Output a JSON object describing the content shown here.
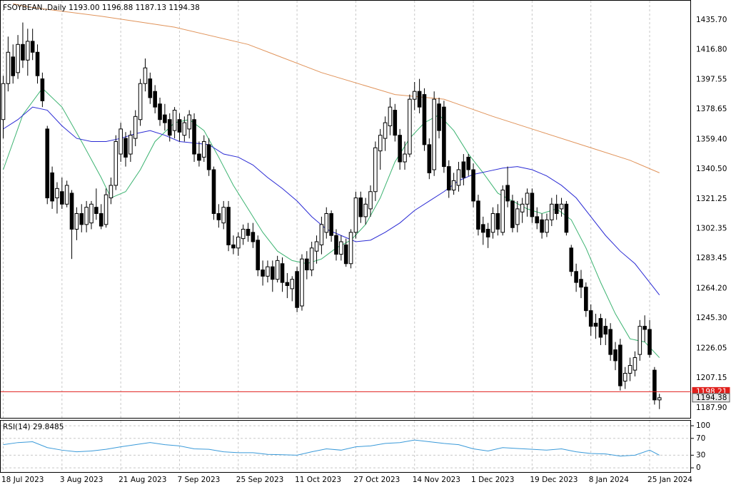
{
  "chart_data": {
    "type": "candlestick",
    "title": "FSOYBEAN.,Daily  1193.00 1196.88 1187.13 1194.38",
    "categories": [
      "18 Jul 2023",
      null,
      null,
      null,
      null,
      null,
      null,
      null,
      null,
      null,
      null,
      null,
      "3 Aug 2023",
      null,
      null,
      null,
      null,
      null,
      null,
      null,
      null,
      null,
      null,
      null,
      "21 Aug 2023",
      null,
      null,
      null,
      null,
      null,
      null,
      null,
      null,
      null,
      null,
      null,
      "7 Sep 2023",
      null,
      null,
      null,
      null,
      null,
      null,
      null,
      null,
      null,
      null,
      null,
      "25 Sep 2023",
      null,
      null,
      null,
      null,
      null,
      null,
      null,
      null,
      null,
      null,
      null,
      "11 Oct 2023",
      null,
      null,
      null,
      null,
      null,
      null,
      null,
      null,
      null,
      null,
      null,
      "27 Oct 2023",
      null,
      null,
      null,
      null,
      null,
      null,
      null,
      null,
      null,
      null,
      null,
      "14 Nov 2023",
      null,
      null,
      null,
      null,
      null,
      null,
      null,
      null,
      null,
      null,
      null,
      "1 Dec 2023",
      null,
      null,
      null,
      null,
      null,
      null,
      null,
      null,
      null,
      null,
      null,
      "19 Dec 2023",
      null,
      null,
      null,
      null,
      null,
      null,
      null,
      null,
      null,
      null,
      null,
      "8 Jan 2024",
      null,
      null,
      null,
      null,
      null,
      null,
      null,
      null,
      null,
      null,
      null,
      "25 Jan 2024",
      null,
      null
    ],
    "candles": [
      [
        1372,
        1400,
        1360,
        1395
      ],
      [
        1395,
        1425,
        1390,
        1415
      ],
      [
        1412,
        1420,
        1395,
        1400
      ],
      [
        1402,
        1426,
        1398,
        1420
      ],
      [
        1420,
        1434,
        1405,
        1410
      ],
      [
        1410,
        1430,
        1400,
        1422
      ],
      [
        1422,
        1430,
        1410,
        1415
      ],
      [
        1415,
        1420,
        1395,
        1400
      ],
      [
        1398,
        1402,
        1380,
        1384
      ],
      [
        1366,
        1368,
        1318,
        1322
      ],
      [
        1338,
        1342,
        1315,
        1320
      ],
      [
        1322,
        1332,
        1312,
        1328
      ],
      [
        1326,
        1335,
        1315,
        1318
      ],
      [
        1318,
        1333,
        1316,
        1330
      ],
      [
        1325,
        1327,
        1283,
        1302
      ],
      [
        1302,
        1316,
        1295,
        1312
      ],
      [
        1312,
        1318,
        1300,
        1305
      ],
      [
        1305,
        1320,
        1300,
        1316
      ],
      [
        1306,
        1320,
        1302,
        1318
      ],
      [
        1316,
        1328,
        1308,
        1312
      ],
      [
        1312,
        1318,
        1302,
        1304
      ],
      [
        1305,
        1328,
        1303,
        1324
      ],
      [
        1322,
        1335,
        1318,
        1330
      ],
      [
        1330,
        1362,
        1327,
        1358
      ],
      [
        1350,
        1370,
        1345,
        1366
      ],
      [
        1360,
        1364,
        1342,
        1348
      ],
      [
        1350,
        1365,
        1345,
        1362
      ],
      [
        1360,
        1378,
        1355,
        1374
      ],
      [
        1372,
        1398,
        1368,
        1395
      ],
      [
        1395,
        1411,
        1390,
        1405
      ],
      [
        1398,
        1402,
        1382,
        1386
      ],
      [
        1390,
        1394,
        1376,
        1380
      ],
      [
        1382,
        1386,
        1368,
        1372
      ],
      [
        1375,
        1382,
        1365,
        1370
      ],
      [
        1372,
        1376,
        1358,
        1362
      ],
      [
        1365,
        1380,
        1360,
        1378
      ],
      [
        1372,
        1376,
        1358,
        1364
      ],
      [
        1362,
        1374,
        1358,
        1370
      ],
      [
        1366,
        1378,
        1360,
        1375
      ],
      [
        1372,
        1376,
        1345,
        1350
      ],
      [
        1350,
        1358,
        1342,
        1346
      ],
      [
        1348,
        1362,
        1345,
        1358
      ],
      [
        1356,
        1360,
        1336,
        1340
      ],
      [
        1340,
        1342,
        1308,
        1312
      ],
      [
        1312,
        1318,
        1303,
        1308
      ],
      [
        1306,
        1320,
        1302,
        1316
      ],
      [
        1316,
        1320,
        1288,
        1292
      ],
      [
        1292,
        1298,
        1286,
        1290
      ],
      [
        1290,
        1300,
        1285,
        1297
      ],
      [
        1296,
        1305,
        1292,
        1302
      ],
      [
        1302,
        1306,
        1294,
        1298
      ],
      [
        1300,
        1306,
        1290,
        1294
      ],
      [
        1295,
        1298,
        1272,
        1276
      ],
      [
        1276,
        1282,
        1266,
        1272
      ],
      [
        1272,
        1282,
        1268,
        1278
      ],
      [
        1278,
        1282,
        1262,
        1270
      ],
      [
        1270,
        1285,
        1268,
        1282
      ],
      [
        1280,
        1284,
        1262,
        1268
      ],
      [
        1268,
        1274,
        1258,
        1266
      ],
      [
        1264,
        1272,
        1256,
        1270
      ],
      [
        1275,
        1278,
        1249,
        1252
      ],
      [
        1253,
        1286,
        1250,
        1283
      ],
      [
        1283,
        1288,
        1270,
        1276
      ],
      [
        1276,
        1294,
        1272,
        1290
      ],
      [
        1288,
        1298,
        1280,
        1294
      ],
      [
        1292,
        1310,
        1286,
        1305
      ],
      [
        1300,
        1316,
        1296,
        1312
      ],
      [
        1312,
        1314,
        1294,
        1298
      ],
      [
        1298,
        1302,
        1282,
        1286
      ],
      [
        1286,
        1298,
        1282,
        1294
      ],
      [
        1292,
        1296,
        1278,
        1280
      ],
      [
        1280,
        1302,
        1277,
        1300
      ],
      [
        1300,
        1326,
        1296,
        1322
      ],
      [
        1322,
        1326,
        1306,
        1310
      ],
      [
        1310,
        1322,
        1305,
        1318
      ],
      [
        1315,
        1330,
        1310,
        1326
      ],
      [
        1326,
        1358,
        1320,
        1354
      ],
      [
        1352,
        1366,
        1340,
        1362
      ],
      [
        1360,
        1374,
        1352,
        1370
      ],
      [
        1368,
        1386,
        1362,
        1380
      ],
      [
        1378,
        1382,
        1358,
        1362
      ],
      [
        1362,
        1366,
        1340,
        1345
      ],
      [
        1345,
        1358,
        1340,
        1350
      ],
      [
        1350,
        1388,
        1348,
        1385
      ],
      [
        1385,
        1396,
        1378,
        1390
      ],
      [
        1390,
        1398,
        1376,
        1380
      ],
      [
        1388,
        1392,
        1352,
        1356
      ],
      [
        1356,
        1360,
        1334,
        1338
      ],
      [
        1340,
        1390,
        1336,
        1385
      ],
      [
        1382,
        1386,
        1360,
        1365
      ],
      [
        1380,
        1384,
        1338,
        1342
      ],
      [
        1342,
        1346,
        1322,
        1327
      ],
      [
        1327,
        1338,
        1324,
        1333
      ],
      [
        1330,
        1345,
        1326,
        1340
      ],
      [
        1345,
        1350,
        1330,
        1335
      ],
      [
        1348,
        1350,
        1336,
        1340
      ],
      [
        1340,
        1344,
        1316,
        1320
      ],
      [
        1320,
        1324,
        1298,
        1302
      ],
      [
        1305,
        1310,
        1292,
        1300
      ],
      [
        1302,
        1306,
        1290,
        1297
      ],
      [
        1300,
        1316,
        1296,
        1312
      ],
      [
        1312,
        1318,
        1298,
        1302
      ],
      [
        1300,
        1330,
        1298,
        1327
      ],
      [
        1330,
        1342,
        1316,
        1320
      ],
      [
        1320,
        1324,
        1300,
        1303
      ],
      [
        1305,
        1320,
        1300,
        1315
      ],
      [
        1313,
        1322,
        1306,
        1318
      ],
      [
        1318,
        1328,
        1310,
        1325
      ],
      [
        1325,
        1328,
        1306,
        1310
      ],
      [
        1310,
        1316,
        1302,
        1306
      ],
      [
        1308,
        1312,
        1296,
        1300
      ],
      [
        1300,
        1312,
        1297,
        1308
      ],
      [
        1308,
        1322,
        1304,
        1318
      ],
      [
        1318,
        1324,
        1308,
        1312
      ],
      [
        1315,
        1322,
        1310,
        1318
      ],
      [
        1318,
        1320,
        1298,
        1300
      ],
      [
        1290,
        1292,
        1272,
        1275
      ],
      [
        1275,
        1280,
        1262,
        1268
      ],
      [
        1270,
        1276,
        1258,
        1265
      ],
      [
        1265,
        1268,
        1246,
        1250
      ],
      [
        1250,
        1254,
        1234,
        1240
      ],
      [
        1242,
        1248,
        1232,
        1240
      ],
      [
        1245,
        1248,
        1228,
        1233
      ],
      [
        1240,
        1245,
        1228,
        1235
      ],
      [
        1238,
        1242,
        1218,
        1222
      ],
      [
        1225,
        1230,
        1212,
        1218
      ],
      [
        1228,
        1232,
        1199,
        1202
      ],
      [
        1205,
        1214,
        1200,
        1210
      ],
      [
        1210,
        1220,
        1205,
        1215
      ],
      [
        1212,
        1224,
        1208,
        1220
      ],
      [
        1222,
        1244,
        1218,
        1240
      ],
      [
        1240,
        1247,
        1230,
        1238
      ],
      [
        1238,
        1244,
        1220,
        1222
      ],
      [
        1212,
        1214,
        1190,
        1193
      ],
      [
        1193,
        1196.88,
        1187.13,
        1194.38
      ]
    ],
    "up_color": "#ffffff",
    "down_color": "#000000",
    "ylim": [
      1182,
      1447
    ],
    "yticks": [
      {
        "value": 1435.7,
        "label": "1435.70"
      },
      {
        "value": 1416.8,
        "label": "1416.80"
      },
      {
        "value": 1397.55,
        "label": "1397.55"
      },
      {
        "value": 1378.65,
        "label": "1378.65"
      },
      {
        "value": 1359.4,
        "label": "1359.40"
      },
      {
        "value": 1340.5,
        "label": "1340.50"
      },
      {
        "value": 1321.25,
        "label": "1321.25"
      },
      {
        "value": 1302.35,
        "label": "1302.35"
      },
      {
        "value": 1283.45,
        "label": "1283.45"
      },
      {
        "value": 1264.2,
        "label": "1264.20"
      },
      {
        "value": 1245.3,
        "label": "1245.30"
      },
      {
        "value": 1226.05,
        "label": "1226.05"
      },
      {
        "value": 1207.15,
        "label": "1207.15"
      },
      {
        "value": 1187.9,
        "label": "1187.90"
      }
    ],
    "grid": true,
    "moving_averages": [
      {
        "color": "#3cb371",
        "x": [
          0,
          4,
          8,
          12,
          16,
          20,
          22,
          25,
          28,
          31,
          35,
          38,
          41,
          44,
          47,
          50,
          53,
          56,
          59,
          62,
          65,
          68,
          71,
          74,
          77,
          80,
          83,
          86,
          89,
          92,
          95,
          98,
          101,
          104,
          107,
          110,
          113,
          116,
          119,
          122,
          125,
          128,
          131,
          134
        ],
        "values": [
          1340,
          1375,
          1392,
          1380,
          1358,
          1335,
          1322,
          1326,
          1340,
          1358,
          1370,
          1372,
          1365,
          1348,
          1330,
          1315,
          1300,
          1288,
          1282,
          1280,
          1283,
          1290,
          1295,
          1305,
          1322,
          1345,
          1360,
          1370,
          1375,
          1365,
          1350,
          1338,
          1325,
          1320,
          1315,
          1312,
          1315,
          1308,
          1290,
          1268,
          1248,
          1232,
          1230,
          1220
        ]
      },
      {
        "color": "#2a2ad4",
        "x": [
          0,
          3,
          6,
          9,
          12,
          15,
          18,
          21,
          24,
          27,
          30,
          33,
          36,
          39,
          42,
          45,
          48,
          51,
          54,
          57,
          60,
          63,
          66,
          69,
          72,
          75,
          78,
          81,
          84,
          87,
          90,
          93,
          96,
          99,
          102,
          105,
          108,
          111,
          114,
          117,
          120,
          123,
          126,
          129,
          132,
          134
        ],
        "values": [
          1366,
          1372,
          1380,
          1378,
          1368,
          1360,
          1358,
          1358,
          1360,
          1363,
          1365,
          1362,
          1358,
          1357,
          1356,
          1350,
          1348,
          1343,
          1335,
          1328,
          1320,
          1310,
          1302,
          1298,
          1294,
          1295,
          1300,
          1306,
          1314,
          1320,
          1326,
          1333,
          1337,
          1339,
          1341,
          1342,
          1340,
          1336,
          1330,
          1322,
          1310,
          1298,
          1288,
          1280,
          1268,
          1260
        ]
      },
      {
        "color": "#e0935a",
        "x": [
          2,
          5,
          20,
          35,
          50,
          65,
          80,
          90,
          100,
          110,
          120,
          128,
          134
        ],
        "values": [
          1446,
          1444,
          1438,
          1431,
          1420,
          1402,
          1388,
          1385,
          1374,
          1364,
          1354,
          1346,
          1338
        ]
      }
    ],
    "price_lines": [
      {
        "value": 1198.21,
        "color": "#e0201c",
        "line": true
      },
      {
        "value": 1194.38,
        "color": "#e8e8e8",
        "line": false
      }
    ],
    "indicator": {
      "label": "RSI(14) 29.8485",
      "color": "#3a9ad9",
      "ylim": [
        -10,
        112
      ],
      "yticks": [
        100,
        70,
        30,
        0
      ],
      "x": [
        0,
        3,
        6,
        9,
        12,
        15,
        18,
        21,
        24,
        27,
        30,
        33,
        36,
        39,
        42,
        45,
        48,
        51,
        54,
        57,
        60,
        63,
        66,
        69,
        72,
        75,
        78,
        81,
        84,
        87,
        90,
        93,
        96,
        99,
        102,
        105,
        108,
        111,
        114,
        117,
        120,
        123,
        126,
        129,
        132,
        134
      ],
      "values": [
        55,
        60,
        62,
        48,
        42,
        38,
        40,
        44,
        50,
        55,
        60,
        55,
        52,
        45,
        44,
        38,
        36,
        36,
        32,
        31,
        30,
        38,
        45,
        42,
        50,
        52,
        58,
        60,
        66,
        62,
        58,
        55,
        45,
        40,
        48,
        46,
        44,
        42,
        45,
        38,
        34,
        33,
        28,
        30,
        42,
        30
      ]
    }
  }
}
